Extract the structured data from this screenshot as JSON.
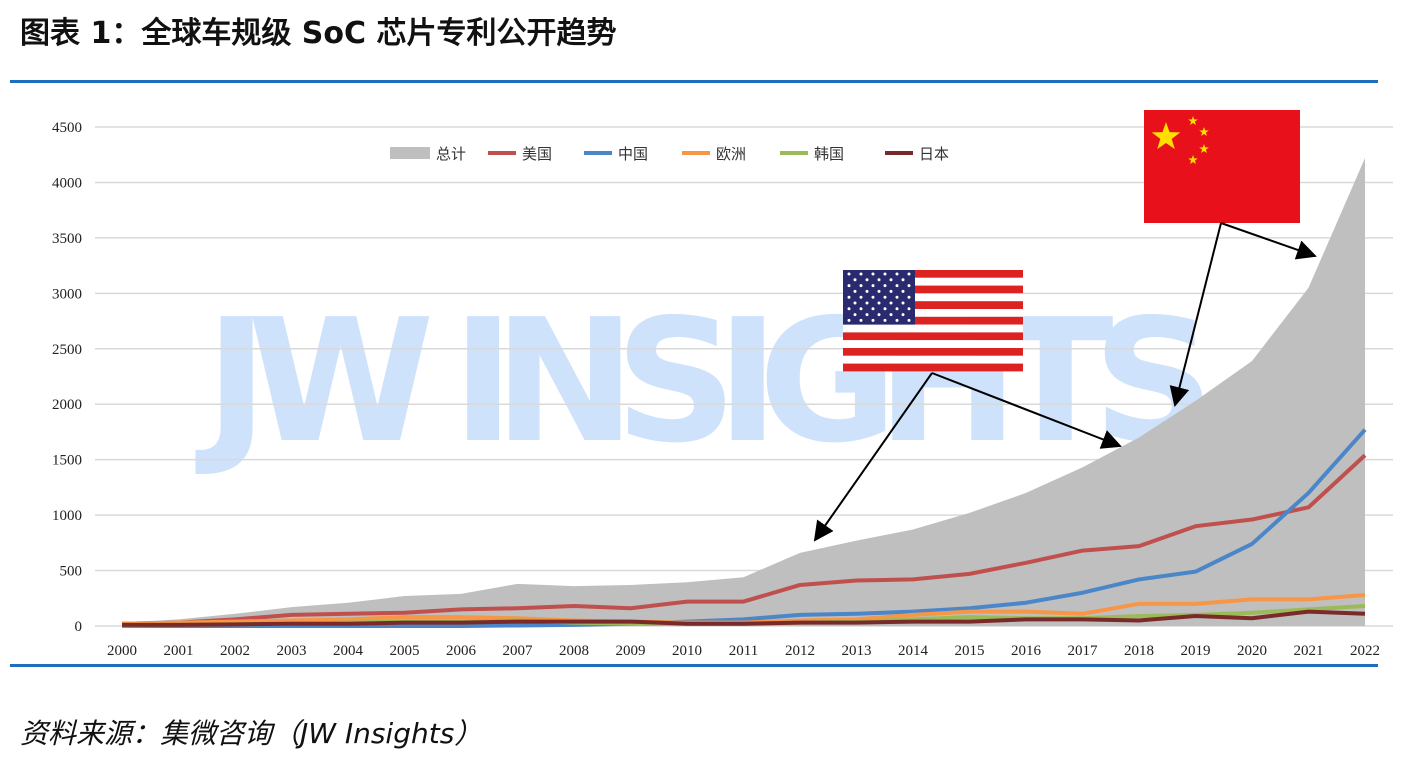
{
  "title": "图表 1：全球车规级 SoC 芯片专利公开趋势",
  "source": "资料来源：集微咨询（JW Insights）",
  "watermark": "JW INSIGHTS",
  "chart_data": {
    "type": "area+line",
    "title": "图表 1：全球车规级 SoC 芯片专利公开趋势",
    "xlabel": "",
    "ylabel": "",
    "ylim": [
      0,
      4500
    ],
    "yticks": [
      0,
      500,
      1000,
      1500,
      2000,
      2500,
      3000,
      3500,
      4000,
      4500
    ],
    "grid": true,
    "legend_position": "top-center",
    "categories": [
      "2000",
      "2001",
      "2002",
      "2003",
      "2004",
      "2005",
      "2006",
      "2007",
      "2008",
      "2009",
      "2010",
      "2011",
      "2012",
      "2013",
      "2014",
      "2015",
      "2016",
      "2017",
      "2018",
      "2019",
      "2020",
      "2021",
      "2022"
    ],
    "series": [
      {
        "name": "总计",
        "kind": "area",
        "color": "#bfbfbf",
        "values": [
          30,
          60,
          110,
          170,
          210,
          270,
          290,
          380,
          360,
          370,
          395,
          440,
          660,
          770,
          870,
          1020,
          1200,
          1430,
          1700,
          2030,
          2390,
          3050,
          4220
        ]
      },
      {
        "name": "美国",
        "kind": "line",
        "color": "#c0504d",
        "values": [
          20,
          30,
          60,
          100,
          110,
          120,
          150,
          160,
          180,
          160,
          220,
          220,
          370,
          410,
          420,
          470,
          570,
          680,
          720,
          900,
          960,
          1070,
          1540
        ]
      },
      {
        "name": "中国",
        "kind": "line",
        "color": "#4a86c8",
        "values": [
          0,
          0,
          0,
          0,
          0,
          0,
          0,
          5,
          10,
          20,
          40,
          60,
          100,
          110,
          130,
          160,
          210,
          300,
          420,
          490,
          740,
          1200,
          1770
        ]
      },
      {
        "name": "欧洲",
        "kind": "line",
        "color": "#f79646",
        "values": [
          20,
          30,
          40,
          50,
          60,
          80,
          80,
          70,
          50,
          40,
          30,
          30,
          50,
          60,
          100,
          130,
          130,
          110,
          200,
          200,
          240,
          240,
          280
        ]
      },
      {
        "name": "韩国",
        "kind": "line",
        "color": "#9bbb59",
        "values": [
          5,
          10,
          15,
          20,
          30,
          40,
          40,
          50,
          30,
          20,
          20,
          20,
          30,
          40,
          60,
          80,
          70,
          70,
          90,
          100,
          120,
          150,
          180
        ]
      },
      {
        "name": "日本",
        "kind": "line",
        "color": "#7b2a2a",
        "values": [
          10,
          10,
          15,
          20,
          20,
          30,
          30,
          40,
          40,
          40,
          20,
          20,
          30,
          30,
          40,
          40,
          60,
          60,
          50,
          90,
          70,
          130,
          110
        ]
      }
    ],
    "annotations": [
      {
        "type": "flag",
        "country": "美国",
        "points_to": [
          "2012",
          "2018"
        ]
      },
      {
        "type": "flag",
        "country": "中国",
        "points_to": [
          "2019",
          "2022"
        ]
      }
    ]
  }
}
